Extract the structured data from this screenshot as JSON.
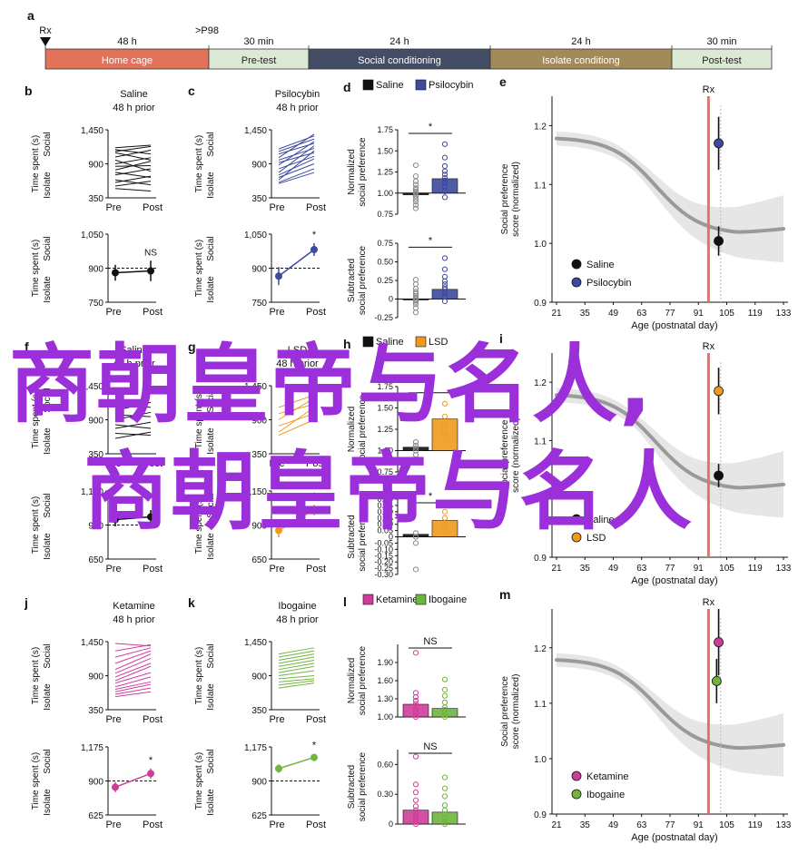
{
  "timeline": {
    "panel_letter": "a",
    "marker_left": "Rx",
    "marker_right": ">P98",
    "segments": [
      {
        "duration": "48 h",
        "label": "Home cage",
        "color": "#e2735b"
      },
      {
        "duration": "30 min",
        "label": "Pre-test",
        "color": "#dbe9d5"
      },
      {
        "duration": "24 h",
        "label": "Social conditioning",
        "color": "#434d63"
      },
      {
        "duration": "24 h",
        "label": "Isolate conditiong",
        "color": "#a38a5a"
      },
      {
        "duration": "30 min",
        "label": "Post-test",
        "color": "#dbe9d5"
      }
    ]
  },
  "labels": {
    "time_spent": "Time spent (s)",
    "social": "Social",
    "isolate": "Isolate",
    "pre": "Pre",
    "post": "Post",
    "normalized_1": "Normalized",
    "normalized_2": "social preference",
    "subtracted_1": "Subtracted",
    "subtracted_2": "social preference",
    "score_1": "Social preference",
    "score_2": "score (normalized)",
    "age_axis": "Age (postnatal day)",
    "rx": "Rx",
    "star": "*",
    "ns": "NS"
  },
  "watermark": {
    "line1": "商朝皇帝与名人,",
    "line2": "商朝皇帝与名人"
  },
  "colors": {
    "saline": "#111111",
    "psilocybin": "#3d4a9e",
    "lsd": "#ef9a1e",
    "ketamine": "#cf3d9a",
    "ibogaine": "#6fb53e",
    "rx_line": "#e8735a",
    "curve": "#9a9a9a",
    "band": "#e3e3e3"
  },
  "chart_data": [
    {
      "panel": "b",
      "type": "line",
      "title": "Saline",
      "subtitle": "48 h prior",
      "ylim": [
        350,
        1450
      ],
      "yticks": [
        "1,450",
        "900",
        "350"
      ],
      "categories": [
        "Pre",
        "Post"
      ],
      "series": [
        {
          "values": [
            1160,
            1200
          ]
        },
        {
          "values": [
            1130,
            1060
          ]
        },
        {
          "values": [
            1100,
            1180
          ]
        },
        {
          "values": [
            1080,
            960
          ]
        },
        {
          "values": [
            1010,
            1120
          ]
        },
        {
          "values": [
            960,
            780
          ]
        },
        {
          "values": [
            900,
            1000
          ]
        },
        {
          "values": [
            860,
            870
          ]
        },
        {
          "values": [
            800,
            940
          ]
        },
        {
          "values": [
            760,
            680
          ]
        },
        {
          "values": [
            720,
            820
          ]
        },
        {
          "values": [
            640,
            560
          ]
        },
        {
          "values": [
            600,
            700
          ]
        },
        {
          "values": [
            540,
            620
          ]
        },
        {
          "values": [
            500,
            460
          ]
        }
      ]
    },
    {
      "panel": "b2",
      "type": "line",
      "ylim": [
        750,
        1050
      ],
      "yticks": [
        "1,050",
        "900",
        "750"
      ],
      "categories": [
        "Pre",
        "Post"
      ],
      "reference": 900,
      "series": [
        {
          "values": [
            880,
            888
          ],
          "err": [
            35,
            45
          ]
        }
      ],
      "annotation": "NS"
    },
    {
      "panel": "c",
      "type": "line",
      "title": "Psilocybin",
      "subtitle": "48 h prior",
      "ylim": [
        350,
        1450
      ],
      "yticks": [
        "1,450",
        "900",
        "350"
      ],
      "categories": [
        "Pre",
        "Post"
      ],
      "series": [
        {
          "values": [
            1140,
            1350
          ]
        },
        {
          "values": [
            1100,
            1300
          ]
        },
        {
          "values": [
            1060,
            1230
          ]
        },
        {
          "values": [
            1000,
            1380
          ]
        },
        {
          "values": [
            960,
            1150
          ]
        },
        {
          "values": [
            920,
            1080
          ]
        },
        {
          "values": [
            880,
            1260
          ]
        },
        {
          "values": [
            820,
            1020
          ]
        },
        {
          "values": [
            760,
            1190
          ]
        },
        {
          "values": [
            720,
            980
          ]
        },
        {
          "values": [
            680,
            900
          ]
        },
        {
          "values": [
            640,
            1110
          ]
        },
        {
          "values": [
            600,
            820
          ]
        },
        {
          "values": [
            580,
            760
          ]
        }
      ]
    },
    {
      "panel": "c2",
      "type": "line",
      "ylim": [
        750,
        1050
      ],
      "yticks": [
        "1,050",
        "900",
        "750"
      ],
      "categories": [
        "Pre",
        "Post"
      ],
      "reference": 900,
      "series": [
        {
          "values": [
            865,
            982
          ],
          "err": [
            40,
            28
          ]
        }
      ],
      "annotation": "*"
    },
    {
      "panel": "d",
      "type": "bar",
      "ylim": [
        0.75,
        1.75
      ],
      "yticks": [
        "1.75",
        "1.50",
        "1.25",
        "1.00",
        "0.75"
      ],
      "categories": [
        "Saline",
        "Psilocybin"
      ],
      "values": [
        0.98,
        1.17
      ],
      "baseline": 1.0,
      "annotation": "*",
      "points": [
        [
          0.82,
          0.86,
          0.9,
          0.93,
          0.96,
          0.98,
          1.0,
          1.02,
          1.04,
          1.06,
          1.1,
          1.14,
          1.2,
          1.33
        ],
        [
          0.95,
          1.02,
          1.08,
          1.12,
          1.15,
          1.18,
          1.22,
          1.26,
          1.32,
          1.42,
          1.58
        ]
      ]
    },
    {
      "panel": "d2",
      "type": "bar",
      "ylim": [
        -0.25,
        0.75
      ],
      "yticks": [
        "0.75",
        "0.50",
        "0.25",
        "0",
        "-0.25"
      ],
      "categories": [
        "Saline",
        "Psilocybin"
      ],
      "values": [
        0.0,
        0.13
      ],
      "baseline": 0,
      "annotation": "*",
      "points": [
        [
          -0.18,
          -0.12,
          -0.07,
          -0.04,
          -0.02,
          0.0,
          0.02,
          0.04,
          0.07,
          0.1,
          0.14,
          0.2,
          0.26
        ],
        [
          -0.03,
          0.03,
          0.07,
          0.1,
          0.13,
          0.16,
          0.2,
          0.24,
          0.3,
          0.4,
          0.55
        ]
      ]
    },
    {
      "panel": "e",
      "type": "scatter",
      "ylim": [
        0.9,
        1.25
      ],
      "yticks": [
        "1.2",
        "1.1",
        "1.0",
        "0.9"
      ],
      "xlim": [
        21,
        133
      ],
      "xticks": [
        21,
        35,
        49,
        63,
        77,
        91,
        105,
        119,
        133
      ],
      "rx": 96,
      "legend_position": "bottom-left",
      "series": [
        {
          "name": "Saline",
          "x": 101,
          "y": 1.004,
          "err": 0.025
        },
        {
          "name": "Psilocybin",
          "x": 101,
          "y": 1.17,
          "err": 0.045
        }
      ]
    },
    {
      "panel": "f",
      "type": "line",
      "title": "Saline",
      "subtitle": "48 h prior",
      "ylim": [
        350,
        1450
      ],
      "yticks": [
        "1,450",
        "900",
        "350"
      ],
      "categories": [
        "Pre",
        "Post"
      ],
      "series": [
        {
          "values": [
            1150,
            1100
          ]
        },
        {
          "values": [
            1050,
            1180
          ]
        },
        {
          "values": [
            980,
            950
          ]
        },
        {
          "values": [
            900,
            1020
          ]
        },
        {
          "values": [
            820,
            760
          ]
        },
        {
          "values": [
            760,
            860
          ]
        },
        {
          "values": [
            680,
            650
          ]
        },
        {
          "values": [
            600,
            700
          ]
        }
      ]
    },
    {
      "panel": "f2",
      "type": "line",
      "ylim": [
        650,
        1150
      ],
      "yticks": [
        "1,150",
        "900",
        "650"
      ],
      "categories": [
        "Pre",
        "Post"
      ],
      "reference": 900,
      "series": [
        {
          "values": [
            940,
            960
          ],
          "err": [
            50,
            50
          ]
        }
      ]
    },
    {
      "panel": "g",
      "type": "line",
      "title": "LSD",
      "subtitle": "48 h prior",
      "ylim": [
        350,
        1450
      ],
      "yticks": [
        "1,450",
        "900",
        "350"
      ],
      "categories": [
        "Pre",
        "Post"
      ],
      "series": [
        {
          "values": [
            1100,
            1300
          ]
        },
        {
          "values": [
            1000,
            1150
          ]
        },
        {
          "values": [
            900,
            1250
          ]
        },
        {
          "values": [
            800,
            1000
          ]
        },
        {
          "values": [
            700,
            1100
          ]
        },
        {
          "values": [
            650,
            900
          ]
        }
      ]
    },
    {
      "panel": "g2",
      "type": "line",
      "ylim": [
        650,
        1150
      ],
      "yticks": [
        "1,150",
        "900",
        "650"
      ],
      "categories": [
        "Pre",
        "Post"
      ],
      "reference": 900,
      "series": [
        {
          "values": [
            860,
            1010
          ],
          "err": [
            50,
            40
          ]
        }
      ],
      "annotation": "*"
    },
    {
      "panel": "h",
      "type": "bar",
      "ylim": [
        0.75,
        1.75
      ],
      "yticks": [
        "1.75",
        "1.50",
        "1.25",
        "1.00",
        "0.75"
      ],
      "categories": [
        "Saline",
        "LSD"
      ],
      "values": [
        1.04,
        1.37
      ],
      "baseline": 1.0,
      "annotation": "*",
      "points": [
        [
          0.95,
          1.0,
          1.03,
          1.06,
          1.1
        ],
        [
          1.2,
          1.3,
          1.4,
          1.55
        ]
      ]
    },
    {
      "panel": "h2",
      "type": "bar",
      "ylim": [
        -0.3,
        0.3
      ],
      "yticks": [
        "0.30",
        "0.25",
        "0.20",
        "0.15",
        "0.10",
        "0.05",
        "0",
        "-0.05",
        "-0.10",
        "-0.15",
        "-0.20",
        "-0.25",
        "-0.30"
      ],
      "categories": [
        "Saline",
        "LSD"
      ],
      "values": [
        0.02,
        0.13
      ],
      "baseline": 0,
      "annotation": "*",
      "points": [
        [
          -0.26,
          -0.05,
          0.0,
          0.03
        ],
        [
          0.05,
          0.1,
          0.15,
          0.2
        ]
      ]
    },
    {
      "panel": "i",
      "type": "scatter",
      "ylim": [
        0.9,
        1.25
      ],
      "yticks": [
        "1.2",
        "1.1",
        "1.0",
        "0.9"
      ],
      "xlim": [
        21,
        133
      ],
      "xticks": [
        21,
        35,
        49,
        63,
        77,
        91,
        105,
        119,
        133
      ],
      "rx": 96,
      "legend_position": "bottom-left",
      "series": [
        {
          "name": "Saline",
          "x": 101,
          "y": 1.04,
          "err": 0.02
        },
        {
          "name": "LSD",
          "x": 101,
          "y": 1.185,
          "err": 0.04
        }
      ]
    },
    {
      "panel": "j",
      "type": "line",
      "title": "Ketamine",
      "subtitle": "48 h prior",
      "ylim": [
        350,
        1450
      ],
      "yticks": [
        "1,450",
        "900",
        "350"
      ],
      "categories": [
        "Pre",
        "Post"
      ],
      "series": [
        {
          "values": [
            1420,
            1380
          ]
        },
        {
          "values": [
            1300,
            1400
          ]
        },
        {
          "values": [
            1200,
            1350
          ]
        },
        {
          "values": [
            1100,
            1300
          ]
        },
        {
          "values": [
            1000,
            1250
          ]
        },
        {
          "values": [
            940,
            1180
          ]
        },
        {
          "values": [
            880,
            1100
          ]
        },
        {
          "values": [
            820,
            1050
          ]
        },
        {
          "values": [
            780,
            950
          ]
        },
        {
          "values": [
            720,
            880
          ]
        },
        {
          "values": [
            680,
            800
          ]
        },
        {
          "values": [
            640,
            760
          ]
        },
        {
          "values": [
            600,
            700
          ]
        },
        {
          "values": [
            560,
            640
          ]
        }
      ]
    },
    {
      "panel": "j2",
      "type": "line",
      "ylim": [
        625,
        1175
      ],
      "yticks": [
        "1,175",
        "900",
        "625"
      ],
      "categories": [
        "Pre",
        "Post"
      ],
      "reference": 900,
      "series": [
        {
          "values": [
            850,
            960
          ],
          "err": [
            40,
            40
          ]
        }
      ],
      "annotation": "*"
    },
    {
      "panel": "k",
      "type": "line",
      "title": "Ibogaine",
      "subtitle": "48 h prior",
      "ylim": [
        350,
        1450
      ],
      "yticks": [
        "1,450",
        "900",
        "350"
      ],
      "categories": [
        "Pre",
        "Post"
      ],
      "series": [
        {
          "values": [
            1250,
            1350
          ]
        },
        {
          "values": [
            1200,
            1300
          ]
        },
        {
          "values": [
            1150,
            1250
          ]
        },
        {
          "values": [
            1100,
            1200
          ]
        },
        {
          "values": [
            1050,
            1150
          ]
        },
        {
          "values": [
            1000,
            1100
          ]
        },
        {
          "values": [
            950,
            1050
          ]
        },
        {
          "values": [
            900,
            980
          ]
        },
        {
          "values": [
            850,
            900
          ]
        },
        {
          "values": [
            800,
            850
          ]
        },
        {
          "values": [
            750,
            820
          ]
        },
        {
          "values": [
            700,
            780
          ]
        }
      ]
    },
    {
      "panel": "k2",
      "type": "line",
      "ylim": [
        625,
        1175
      ],
      "yticks": [
        "1,175",
        "900",
        "625"
      ],
      "categories": [
        "Pre",
        "Post"
      ],
      "reference": 900,
      "series": [
        {
          "values": [
            1000,
            1090
          ],
          "err": [
            35,
            30
          ]
        }
      ],
      "annotation": "*"
    },
    {
      "panel": "l",
      "type": "bar",
      "ylim": [
        1.0,
        2.2
      ],
      "yticks": [
        "1.90",
        "1.60",
        "1.30",
        "1.00"
      ],
      "categories": [
        "Ketamine",
        "Ibogaine"
      ],
      "values": [
        1.21,
        1.14
      ],
      "baseline": 1.0,
      "annotation": "NS",
      "points": [
        [
          1.0,
          1.03,
          1.06,
          1.1,
          1.14,
          1.18,
          1.22,
          1.27,
          1.33,
          1.4,
          2.06
        ],
        [
          1.0,
          1.03,
          1.08,
          1.12,
          1.16,
          1.24,
          1.35,
          1.45,
          1.62
        ]
      ]
    },
    {
      "panel": "l2",
      "type": "bar",
      "ylim": [
        0,
        0.75
      ],
      "yticks": [
        "0.60",
        "0.30",
        "0"
      ],
      "categories": [
        "Ketamine",
        "Ibogaine"
      ],
      "values": [
        0.14,
        0.12
      ],
      "baseline": 0,
      "annotation": "NS",
      "points": [
        [
          0.0,
          0.02,
          0.05,
          0.08,
          0.11,
          0.14,
          0.18,
          0.24,
          0.32,
          0.4,
          0.68
        ],
        [
          0.0,
          0.03,
          0.06,
          0.1,
          0.14,
          0.19,
          0.28,
          0.36,
          0.47
        ]
      ]
    },
    {
      "panel": "m",
      "type": "scatter",
      "ylim": [
        0.9,
        1.27
      ],
      "yticks": [
        "1.2",
        "1.1",
        "1.0",
        "0.9"
      ],
      "xlim": [
        21,
        133
      ],
      "xticks": [
        21,
        35,
        49,
        63,
        77,
        91,
        105,
        119,
        133
      ],
      "rx": 96,
      "legend_position": "bottom-left",
      "series": [
        {
          "name": "Ketamine",
          "x": 101,
          "y": 1.21,
          "err": 0.06
        },
        {
          "name": "Ibogaine",
          "x": 100,
          "y": 1.14,
          "err": 0.04
        }
      ]
    }
  ]
}
